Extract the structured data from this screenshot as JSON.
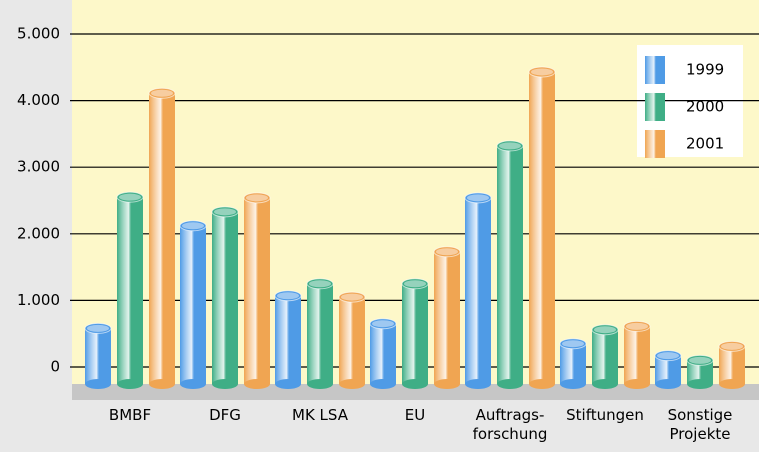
{
  "chart_data": {
    "type": "bar",
    "categories": [
      "BMBF",
      "DFG",
      "MK LSA",
      "EU",
      "Auftrags-\nforschung",
      "Stiftungen",
      "Sonstige\nProjekte"
    ],
    "series": [
      {
        "name": "1999",
        "color": "#4f9be6",
        "values": [
          580,
          2120,
          1070,
          650,
          2540,
          350,
          170
        ]
      },
      {
        "name": "2000",
        "color": "#3fae86",
        "values": [
          2550,
          2330,
          1250,
          1250,
          3320,
          560,
          100
        ]
      },
      {
        "name": "2001",
        "color": "#f0a552",
        "values": [
          4110,
          2540,
          1050,
          1730,
          4430,
          610,
          310
        ]
      }
    ],
    "ylim": [
      0,
      5000
    ],
    "yticks": [
      0,
      {
        "value": 1000,
        "label": "1.000"
      },
      {
        "value": 2000,
        "label": "2.000"
      },
      {
        "value": 3000,
        "label": "3.000"
      },
      {
        "value": 4000,
        "label": "4.000"
      },
      {
        "value": 5000,
        "label": "5.000"
      }
    ],
    "grid": true
  }
}
